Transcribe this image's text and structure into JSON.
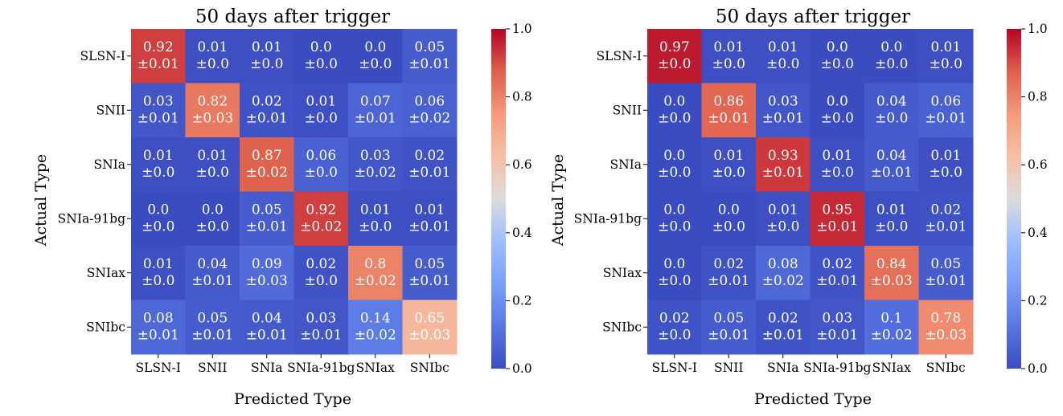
{
  "chart_data": [
    {
      "type": "heatmap",
      "title": "50 days after trigger",
      "xlabel": "Predicted Type",
      "ylabel": "Actual Type",
      "x_categories": [
        "SLSN-I",
        "SNII",
        "SNIa",
        "SNIa-91bg",
        "SNIax",
        "SNIbc"
      ],
      "y_categories": [
        "SLSN-I",
        "SNII",
        "SNIa",
        "SNIa-91bg",
        "SNIax",
        "SNIbc"
      ],
      "values": [
        [
          0.92,
          0.01,
          0.01,
          0.0,
          0.0,
          0.05
        ],
        [
          0.03,
          0.82,
          0.02,
          0.01,
          0.07,
          0.06
        ],
        [
          0.01,
          0.01,
          0.87,
          0.06,
          0.03,
          0.02
        ],
        [
          0.0,
          0.0,
          0.05,
          0.92,
          0.01,
          0.01
        ],
        [
          0.01,
          0.04,
          0.09,
          0.02,
          0.8,
          0.05
        ],
        [
          0.08,
          0.05,
          0.04,
          0.03,
          0.14,
          0.65
        ]
      ],
      "value_labels": [
        [
          "0.92",
          "0.01",
          "0.01",
          "0.0",
          "0.0",
          "0.05"
        ],
        [
          "0.03",
          "0.82",
          "0.02",
          "0.01",
          "0.07",
          "0.06"
        ],
        [
          "0.01",
          "0.01",
          "0.87",
          "0.06",
          "0.03",
          "0.02"
        ],
        [
          "0.0",
          "0.0",
          "0.05",
          "0.92",
          "0.01",
          "0.01"
        ],
        [
          "0.01",
          "0.04",
          "0.09",
          "0.02",
          "0.8",
          "0.05"
        ],
        [
          "0.08",
          "0.05",
          "0.04",
          "0.03",
          "0.14",
          "0.65"
        ]
      ],
      "errors": [
        [
          "±0.01",
          "±0.0",
          "±0.0",
          "±0.0",
          "±0.0",
          "±0.01"
        ],
        [
          "±0.01",
          "±0.03",
          "±0.01",
          "±0.0",
          "±0.01",
          "±0.02"
        ],
        [
          "±0.0",
          "±0.0",
          "±0.02",
          "±0.0",
          "±0.02",
          "±0.01"
        ],
        [
          "±0.0",
          "±0.0",
          "±0.01",
          "±0.02",
          "±0.0",
          "±0.01"
        ],
        [
          "±0.0",
          "±0.01",
          "±0.03",
          "±0.0",
          "±0.02",
          "±0.01"
        ],
        [
          "±0.01",
          "±0.01",
          "±0.01",
          "±0.01",
          "±0.02",
          "±0.03"
        ]
      ],
      "colorbar": {
        "range": [
          0.0,
          1.0
        ],
        "ticks": [
          0.0,
          0.2,
          0.4,
          0.6,
          0.8,
          1.0
        ],
        "tick_labels": [
          "0.0",
          "0.2",
          "0.4",
          "0.6",
          "0.8",
          "1.0"
        ],
        "colormap": "coolwarm"
      }
    },
    {
      "type": "heatmap",
      "title": "50 days after trigger",
      "xlabel": "Predicted Type",
      "ylabel": "Actual Type",
      "x_categories": [
        "SLSN-I",
        "SNII",
        "SNIa",
        "SNIa-91bg",
        "SNIax",
        "SNIbc"
      ],
      "y_categories": [
        "SLSN-I",
        "SNII",
        "SNIa",
        "SNIa-91bg",
        "SNIax",
        "SNIbc"
      ],
      "values": [
        [
          0.97,
          0.01,
          0.01,
          0.0,
          0.0,
          0.01
        ],
        [
          0.0,
          0.86,
          0.03,
          0.0,
          0.04,
          0.06
        ],
        [
          0.0,
          0.01,
          0.93,
          0.01,
          0.04,
          0.01
        ],
        [
          0.0,
          0.0,
          0.01,
          0.95,
          0.01,
          0.02
        ],
        [
          0.0,
          0.02,
          0.08,
          0.02,
          0.84,
          0.05
        ],
        [
          0.02,
          0.05,
          0.02,
          0.03,
          0.1,
          0.78
        ]
      ],
      "value_labels": [
        [
          "0.97",
          "0.01",
          "0.01",
          "0.0",
          "0.0",
          "0.01"
        ],
        [
          "0.0",
          "0.86",
          "0.03",
          "0.0",
          "0.04",
          "0.06"
        ],
        [
          "0.0",
          "0.01",
          "0.93",
          "0.01",
          "0.04",
          "0.01"
        ],
        [
          "0.0",
          "0.0",
          "0.01",
          "0.95",
          "0.01",
          "0.02"
        ],
        [
          "0.0",
          "0.02",
          "0.08",
          "0.02",
          "0.84",
          "0.05"
        ],
        [
          "0.02",
          "0.05",
          "0.02",
          "0.03",
          "0.1",
          "0.78"
        ]
      ],
      "errors": [
        [
          "±0.0",
          "±0.0",
          "±0.0",
          "±0.0",
          "±0.0",
          "±0.0"
        ],
        [
          "±0.0",
          "±0.01",
          "±0.01",
          "±0.0",
          "±0.0",
          "±0.01"
        ],
        [
          "±0.0",
          "±0.0",
          "±0.01",
          "±0.0",
          "±0.01",
          "±0.0"
        ],
        [
          "±0.0",
          "±0.0",
          "±0.0",
          "±0.01",
          "±0.0",
          "±0.01"
        ],
        [
          "±0.0",
          "±0.01",
          "±0.02",
          "±0.01",
          "±0.03",
          "±0.01"
        ],
        [
          "±0.0",
          "±0.01",
          "±0.01",
          "±0.01",
          "±0.02",
          "±0.03"
        ]
      ],
      "colorbar": {
        "range": [
          0.0,
          1.0
        ],
        "ticks": [
          0.0,
          0.2,
          0.4,
          0.6,
          0.8,
          1.0
        ],
        "tick_labels": [
          "0.0",
          "0.2",
          "0.4",
          "0.6",
          "0.8",
          "1.0"
        ],
        "colormap": "coolwarm"
      }
    }
  ]
}
